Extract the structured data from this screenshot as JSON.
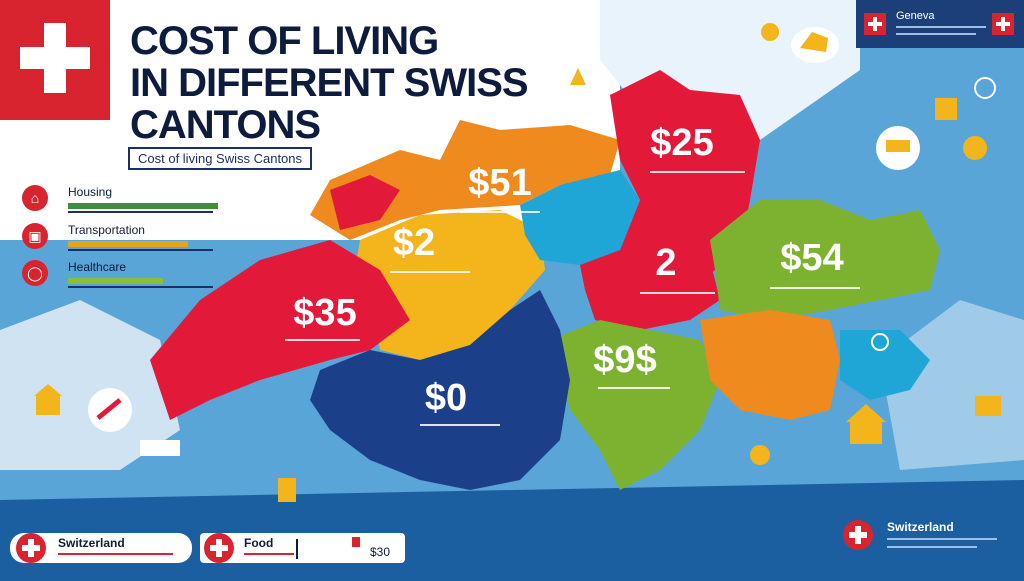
{
  "title_lines": [
    "COST OF LIVING",
    "IN DIFFERENT SWISS",
    "CANTONS"
  ],
  "subtitle": "Cost of living Swiss Cantons",
  "legend": [
    {
      "label": "Housing",
      "icon": "house-icon",
      "color": "#3f8f3a"
    },
    {
      "label": "Transportation",
      "icon": "car-icon",
      "color": "#e8a31c"
    },
    {
      "label": "Healthcare",
      "icon": "health-icon",
      "color": "#8bbf3a"
    }
  ],
  "top_right": {
    "label": "Geneva"
  },
  "regions": [
    {
      "label": "$51",
      "color": "#ef8a1f"
    },
    {
      "label": "$25",
      "color": "#e3193a"
    },
    {
      "label": "$2",
      "color": "#f4b41b"
    },
    {
      "label": "2",
      "color": "#e3193a"
    },
    {
      "label": "$54",
      "color": "#7cb22f"
    },
    {
      "label": "$35",
      "color": "#e3193a"
    },
    {
      "label": "$9$",
      "color": "#7cb22f"
    },
    {
      "label": "$0",
      "color": "#1c3f8a"
    }
  ],
  "bottom_left": {
    "title": "Switzerland"
  },
  "bottom_middle": {
    "title": "Food",
    "value": "$30"
  },
  "bottom_right": {
    "title": "Switzerland"
  },
  "colors": {
    "red": "#e3193a",
    "orange": "#ef8a1f",
    "yellow": "#f4b41b",
    "green": "#7cb22f",
    "navy": "#1c3f8a",
    "teal": "#1fa6d6"
  }
}
